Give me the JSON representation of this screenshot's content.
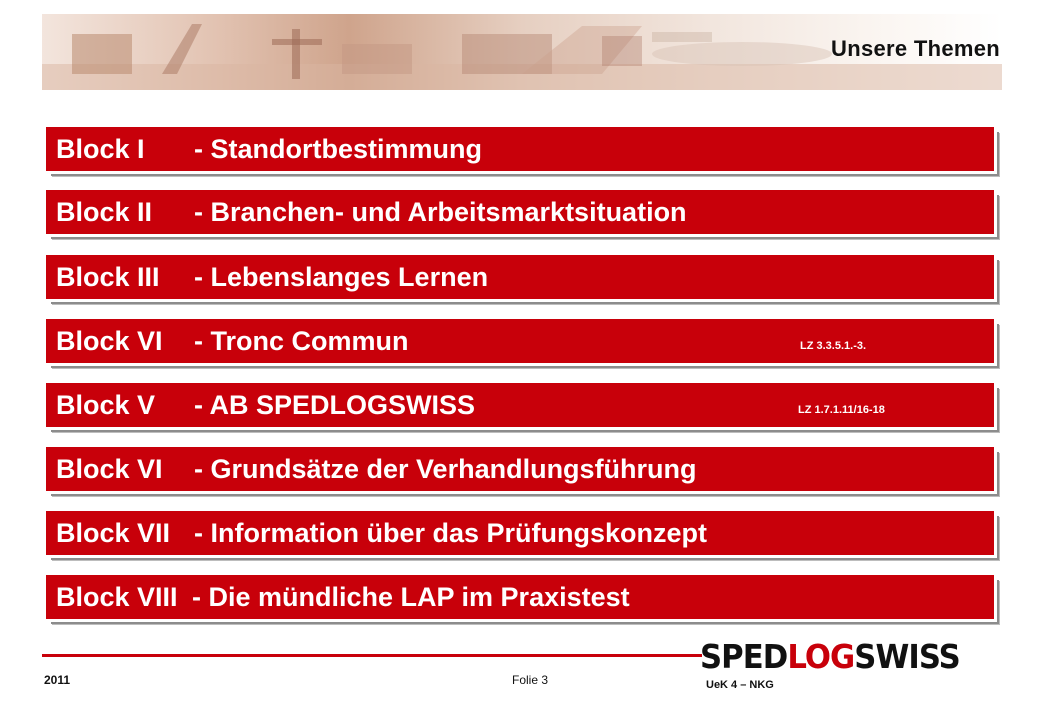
{
  "header": {
    "title": "Unsere Themen"
  },
  "blocks": [
    {
      "label": "Block I",
      "text": "- Standortbestimmung",
      "ref": ""
    },
    {
      "label": "Block II",
      "text": "- Branchen- und Arbeitsmarktsituation",
      "ref": ""
    },
    {
      "label": "Block III",
      "text": "- Lebenslanges Lernen",
      "ref": ""
    },
    {
      "label": "Block VI",
      "text": "- Tronc Commun",
      "ref": "LZ 3.3.5.1.-3."
    },
    {
      "label": "Block V",
      "text": "- AB SPEDLOGSWISS",
      "ref": "LZ 1.7.1.11/16-18"
    },
    {
      "label": "Block VI",
      "text": "- Grundsätze der Verhandlungsführung",
      "ref": ""
    },
    {
      "label": "Block VII",
      "text": "- Information über das Prüfungskonzept",
      "ref": ""
    },
    {
      "label": "Block VIII",
      "text": "- Die mündliche LAP im Praxistest",
      "ref": ""
    }
  ],
  "footer": {
    "year": "2011",
    "slide": "Folie 3",
    "course": "UeK 4 – NKG",
    "logo": {
      "part1": "SPED",
      "part2": "LOG",
      "part3": "SWISS"
    }
  },
  "colors": {
    "accent": "#c8000a",
    "text": "#111111"
  },
  "icons": {
    "banner": "logistics-banner-image"
  }
}
